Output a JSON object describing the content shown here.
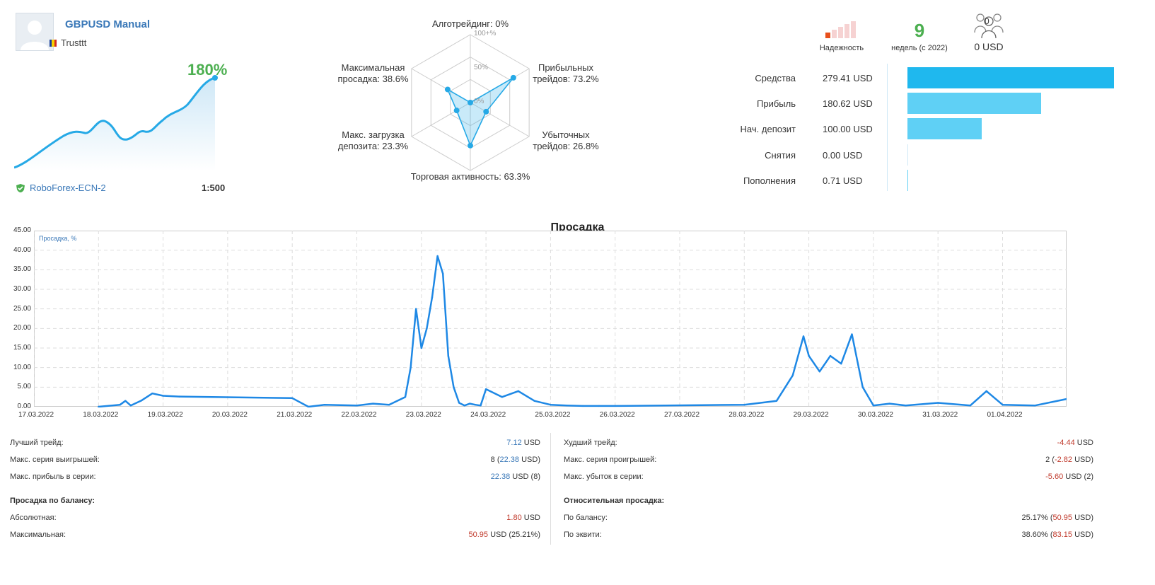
{
  "signal": {
    "name": "GBPUSD Manual",
    "author": "Trusttt",
    "growth": "180%",
    "broker": "RoboForex-ECN-2",
    "leverage": "1:500"
  },
  "radar": {
    "algo": "Алготрейдинг: 0%",
    "profit_trades_1": "Прибыльных",
    "profit_trades_2": "трейдов: 73.2%",
    "loss_trades_1": "Убыточных",
    "loss_trades_2": "трейдов: 26.8%",
    "activity": "Торговая активность: 63.3%",
    "load_1": "Макс. загрузка",
    "load_2": "депозита: 23.3%",
    "drawdown_1": "Максимальная",
    "drawdown_2": "просадка: 38.6%",
    "tick_100": "100+%",
    "tick_50": "50%",
    "tick_0": "0%",
    "values": {
      "algo": 0,
      "profit": 73.2,
      "loss": 26.8,
      "activity": 63.3,
      "load": 23.3,
      "drawdown": 38.6
    }
  },
  "top_stats": {
    "reliability_label": "Надежность",
    "weeks_value": "9",
    "weeks_label": "недель (с 2022)",
    "subscribers_count": "0",
    "subscribers_funds": "0 USD"
  },
  "balance_bars": [
    {
      "label": "Средства",
      "value": "279.41 USD",
      "amount": 279.41,
      "color": "#1fb8ee"
    },
    {
      "label": "Прибыль",
      "value": "180.62 USD",
      "amount": 180.62,
      "color": "#5fd0f5"
    },
    {
      "label": "Нач. депозит",
      "value": "100.00 USD",
      "amount": 100.0,
      "color": "#5fd0f5"
    },
    {
      "label": "Снятия",
      "value": "0.00 USD",
      "amount": 0,
      "color": "#5fd0f5"
    },
    {
      "label": "Пополнения",
      "value": "0.71 USD",
      "amount": 0.71,
      "color": "#5fd0f5"
    }
  ],
  "drawdown_chart": {
    "title": "Просадка",
    "legend": "Просадка, %",
    "yticks": [
      "45.00",
      "40.00",
      "35.00",
      "30.00",
      "25.00",
      "20.00",
      "15.00",
      "10.00",
      "5.00",
      "0.00"
    ],
    "xticks": [
      "17.03.2022",
      "18.03.2022",
      "19.03.2022",
      "20.03.2022",
      "21.03.2022",
      "22.03.2022",
      "23.03.2022",
      "24.03.2022",
      "25.03.2022",
      "26.03.2022",
      "27.03.2022",
      "28.03.2022",
      "29.03.2022",
      "30.03.2022",
      "31.03.2022",
      "01.04.2022"
    ]
  },
  "chart_data": {
    "type": "line",
    "title": "Просадка",
    "ylabel": "Просадка, %",
    "ylim": [
      0,
      45
    ],
    "x_range": [
      "17.03.2022",
      "02.04.2022"
    ],
    "grid": true,
    "x": [
      "18.03 00:00",
      "18.03 08:00",
      "18.03 10:00",
      "18.03 12:00",
      "18.03 16:00",
      "18.03 20:00",
      "19.03 00:00",
      "19.03 06:00",
      "21.03 00:00",
      "21.03 06:00",
      "21.03 12:00",
      "22.03 00:00",
      "22.03 06:00",
      "22.03 12:00",
      "22.03 18:00",
      "22.03 20:00",
      "22.03 22:00",
      "23.03 00:00",
      "23.03 02:00",
      "23.03 04:00",
      "23.03 06:00",
      "23.03 08:00",
      "23.03 10:00",
      "23.03 12:00",
      "23.03 14:00",
      "23.03 16:00",
      "23.03 18:00",
      "23.03 20:00",
      "23.03 22:00",
      "24.03 00:00",
      "24.03 06:00",
      "24.03 12:00",
      "24.03 18:00",
      "25.03 00:00",
      "25.03 06:00",
      "25.03 12:00",
      "25.03 18:00",
      "26.03 00:00",
      "28.03 00:00",
      "28.03 12:00",
      "28.03 18:00",
      "28.03 22:00",
      "29.03 00:00",
      "29.03 04:00",
      "29.03 08:00",
      "29.03 12:00",
      "29.03 16:00",
      "29.03 20:00",
      "30.03 00:00",
      "30.03 06:00",
      "30.03 12:00",
      "31.03 00:00",
      "31.03 12:00",
      "31.03 18:00",
      "01.04 00:00",
      "01.04 12:00",
      "02.04 00:00"
    ],
    "y": [
      0,
      0.5,
      1.5,
      0.3,
      1.6,
      3.4,
      2.8,
      2.6,
      2.2,
      0,
      0.5,
      0.3,
      0.8,
      0.5,
      2.5,
      10,
      25,
      15,
      20,
      28,
      38.5,
      34,
      13,
      5,
      1,
      0.3,
      0.8,
      0.5,
      0.3,
      4.5,
      2.5,
      4,
      1.5,
      0.5,
      0.3,
      0.2,
      0.2,
      0.2,
      0.5,
      1.5,
      8,
      18,
      13,
      9,
      13,
      11,
      18.5,
      5,
      0.3,
      0.8,
      0.3,
      1,
      0.3,
      4,
      0.5,
      0.3,
      2
    ]
  },
  "stats_left": {
    "best_trade_label": "Лучший трейд:",
    "best_trade_value": "7.12 USD",
    "max_wins_label": "Макс. серия выигрышей:",
    "max_wins_value": "8 (22.38 USD)",
    "max_profit_label": "Макс. прибыль в серии:",
    "max_profit_value": "22.38 USD (8)",
    "balance_dd_heading": "Просадка по балансу:",
    "abs_label": "Абсолютная:",
    "abs_value": "1.80 USD",
    "max_label": "Максимальная:",
    "max_value": "50.95 USD (25.21%)"
  },
  "stats_right": {
    "worst_trade_label": "Худший трейд:",
    "worst_trade_value": "-4.44 USD",
    "max_losses_label": "Макс. серия проигрышей:",
    "max_losses_value": "2 (-2.82 USD)",
    "max_loss_label": "Макс. убыток в серии:",
    "max_loss_value": "-5.60 USD (2)",
    "rel_dd_heading": "Относительная просадка:",
    "by_balance_label": "По балансу:",
    "by_balance_value": "25.17% (50.95 USD)",
    "by_equity_label": "По эквити:",
    "by_equity_value": "38.60% (83.15 USD)"
  }
}
